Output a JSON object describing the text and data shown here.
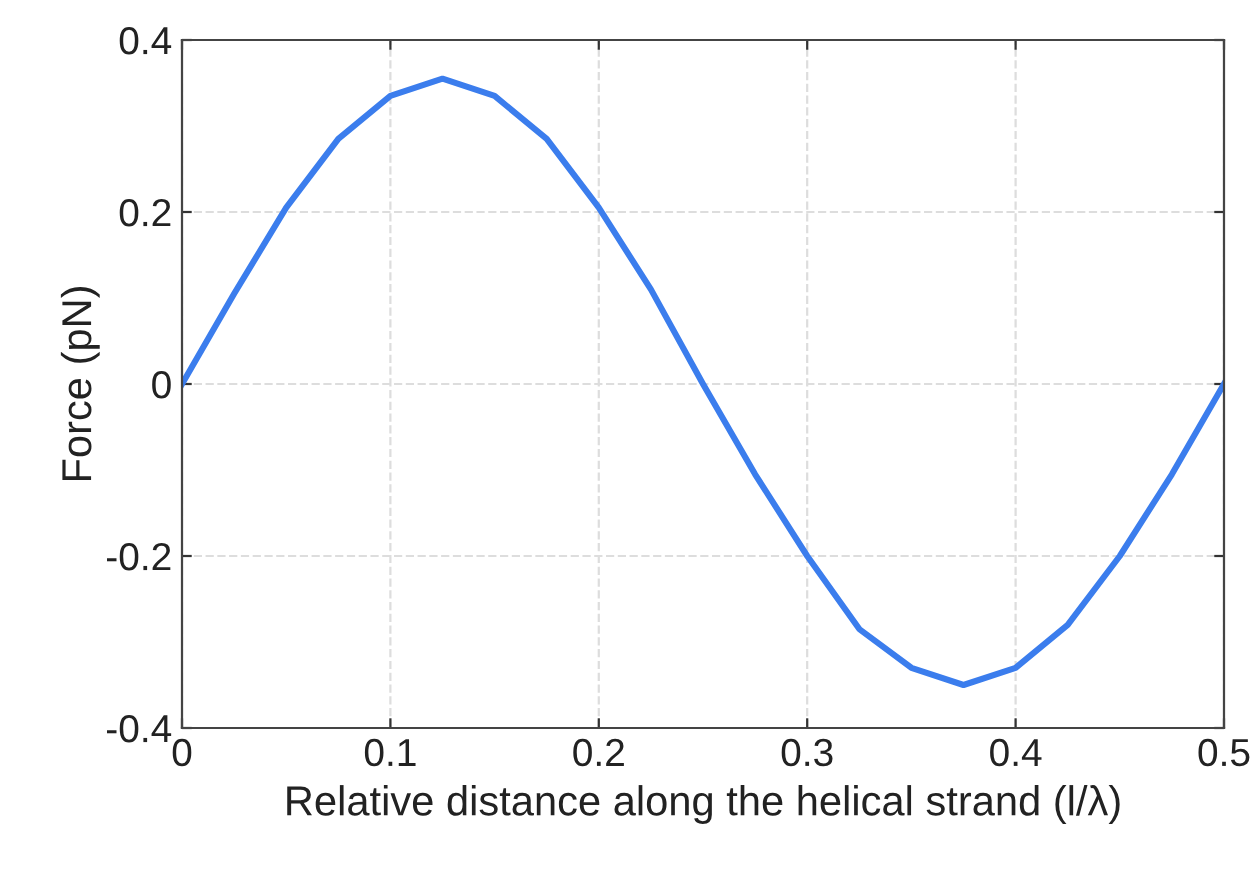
{
  "chart_data": {
    "type": "line",
    "xlabel": "Relative distance along the helical strand (l/λ)",
    "ylabel": "Force (pN)",
    "x": [
      0,
      0.025,
      0.05,
      0.075,
      0.1,
      0.125,
      0.15,
      0.175,
      0.2,
      0.225,
      0.25,
      0.275,
      0.3,
      0.325,
      0.35,
      0.375,
      0.4,
      0.425,
      0.45,
      0.475,
      0.5
    ],
    "series": [
      {
        "color": "#3b7ded",
        "values": [
          0,
          0.105,
          0.205,
          0.285,
          0.335,
          0.355,
          0.335,
          0.285,
          0.205,
          0.11,
          0,
          -0.105,
          -0.2,
          -0.285,
          -0.33,
          -0.35,
          -0.33,
          -0.28,
          -0.2,
          -0.105,
          0
        ]
      }
    ],
    "xlim": [
      0,
      0.5
    ],
    "xticks": [
      0,
      0.1,
      0.2,
      0.3,
      0.4,
      0.5
    ],
    "ylim": [
      -0.4,
      0.4
    ],
    "yticks": [
      {
        "value": -0.4,
        "label": "-0.4"
      },
      {
        "value": -0.2,
        "label": "-0.2"
      },
      0,
      0.2,
      0.4
    ],
    "grid": true,
    "marker": "none",
    "line_style": "solid"
  }
}
